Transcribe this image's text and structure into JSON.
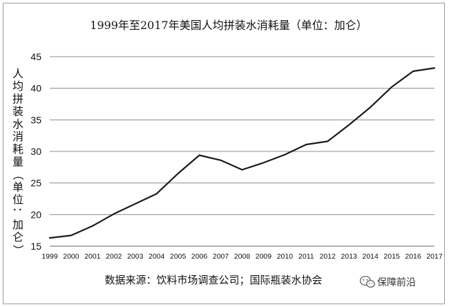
{
  "chart_data": {
    "type": "line",
    "title": "1999年至2017年美国人均拼装水消耗量（单位：加仑）",
    "ylabel": "人均拼装水消耗量（单位：加仑）",
    "xlabel": "",
    "x": [
      "1999",
      "2000",
      "2001",
      "2002",
      "2003",
      "2004",
      "2005",
      "2006",
      "2007",
      "2008",
      "2009",
      "2010",
      "2011",
      "2012",
      "2013",
      "2014",
      "2015",
      "2016",
      "2017"
    ],
    "yticks": [
      "15",
      "20",
      "25",
      "30",
      "35",
      "40",
      "45"
    ],
    "ylim": [
      15,
      45
    ],
    "series": [
      {
        "values": [
          16.3,
          16.7,
          18.2,
          20.1,
          21.7,
          23.3,
          26.5,
          29.4,
          28.6,
          27.1,
          28.2,
          29.5,
          31.1,
          31.6,
          34.2,
          37.0,
          40.2,
          42.7,
          43.2
        ]
      }
    ],
    "grid": "horizontal",
    "line_color": "#1a1a1a"
  },
  "source": "数据来源：饮料市场调查公司；国际瓶装水协会",
  "watermark": {
    "icon": "wechat-icon",
    "text": "保障前沿"
  }
}
